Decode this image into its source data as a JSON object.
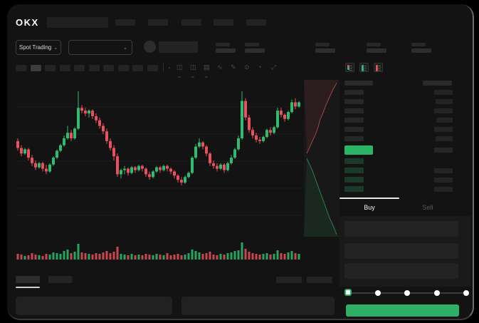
{
  "app": {
    "logo_text": "OKX"
  },
  "header": {
    "market_selector_label": "Spot Trading",
    "nav_items": 5,
    "stat_pairs": 5
  },
  "toolbar": {
    "timeframe_slots": 10,
    "active_timeframe_index": 1,
    "icons": [
      {
        "name": "candle-style-icon",
        "glyph": "◫",
        "chevron": true
      },
      {
        "name": "indicator-icon",
        "glyph": "◫",
        "chevron": true
      },
      {
        "name": "chart-layout-icon",
        "glyph": "▤",
        "chevron": true
      },
      {
        "name": "line-tool-icon",
        "glyph": "∿",
        "chevron": false
      },
      {
        "name": "draw-tool-icon",
        "glyph": "✎",
        "chevron": false
      },
      {
        "name": "snapshot-icon",
        "glyph": "⊙",
        "chevron": false
      },
      {
        "name": "history-icon",
        "glyph": "◔",
        "chevron": false
      },
      {
        "name": "fullscreen-icon",
        "glyph": "⤢",
        "chevron": false
      }
    ]
  },
  "orderbook": {
    "view_icons": [
      "combined-book-icon",
      "bids-only-icon",
      "asks-only-icon"
    ],
    "ask_rows": 6,
    "bid_rows": 4,
    "ask_amount_widths": [
      26,
      24,
      26,
      23,
      26,
      24
    ],
    "colors": {
      "ask_red": "#e8515d",
      "bid_green": "#2ebd70",
      "last_price": "#2bb368",
      "bid_row_bg": "#1b3a2b"
    }
  },
  "trade_panel": {
    "buy_tab": "Buy",
    "sell_tab": "Sell",
    "fields": 3,
    "slider_stops": 5,
    "active_stop_index": 0,
    "submit_color": "#2fae66"
  },
  "chart_data": {
    "type": "candlestick",
    "grid": true,
    "colors": {
      "up": "#2ebd70",
      "down": "#e8515d"
    },
    "candles": [
      [
        64,
        66,
        57,
        59
      ],
      [
        59,
        61,
        53,
        55
      ],
      [
        55,
        59,
        54,
        58
      ],
      [
        58,
        59,
        50,
        52
      ],
      [
        52,
        54,
        46,
        48
      ],
      [
        48,
        50,
        43,
        45
      ],
      [
        45,
        49,
        44,
        48
      ],
      [
        48,
        49,
        42,
        44
      ],
      [
        44,
        47,
        40,
        42
      ],
      [
        42,
        48,
        41,
        47
      ],
      [
        47,
        53,
        46,
        52
      ],
      [
        52,
        58,
        51,
        57
      ],
      [
        57,
        62,
        56,
        61
      ],
      [
        61,
        68,
        60,
        66
      ],
      [
        66,
        75,
        65,
        70
      ],
      [
        70,
        72,
        64,
        66
      ],
      [
        66,
        74,
        65,
        73
      ],
      [
        73,
        100,
        72,
        88
      ],
      [
        88,
        90,
        84,
        86
      ],
      [
        86,
        88,
        82,
        84
      ],
      [
        84,
        87,
        81,
        86
      ],
      [
        86,
        87,
        80,
        82
      ],
      [
        82,
        84,
        77,
        79
      ],
      [
        79,
        81,
        73,
        75
      ],
      [
        75,
        77,
        69,
        71
      ],
      [
        71,
        73,
        62,
        64
      ],
      [
        64,
        66,
        57,
        59
      ],
      [
        59,
        61,
        50,
        53
      ],
      [
        53,
        55,
        38,
        40
      ],
      [
        40,
        44,
        37,
        43
      ],
      [
        43,
        46,
        40,
        44
      ],
      [
        44,
        45,
        39,
        41
      ],
      [
        41,
        46,
        40,
        45
      ],
      [
        45,
        46,
        41,
        43
      ],
      [
        43,
        47,
        42,
        46
      ],
      [
        46,
        47,
        42,
        44
      ],
      [
        44,
        45,
        38,
        40
      ],
      [
        40,
        42,
        36,
        38
      ],
      [
        38,
        43,
        37,
        42
      ],
      [
        42,
        46,
        41,
        45
      ],
      [
        45,
        46,
        41,
        43
      ],
      [
        43,
        47,
        42,
        46
      ],
      [
        46,
        47,
        42,
        44
      ],
      [
        44,
        45,
        40,
        42
      ],
      [
        42,
        43,
        37,
        39
      ],
      [
        39,
        40,
        34,
        36
      ],
      [
        36,
        38,
        32,
        34
      ],
      [
        34,
        39,
        33,
        38
      ],
      [
        38,
        42,
        37,
        41
      ],
      [
        41,
        53,
        40,
        52
      ],
      [
        52,
        62,
        51,
        60
      ],
      [
        60,
        66,
        59,
        63
      ],
      [
        63,
        64,
        58,
        60
      ],
      [
        60,
        61,
        53,
        55
      ],
      [
        55,
        56,
        46,
        48
      ],
      [
        48,
        50,
        44,
        46
      ],
      [
        46,
        48,
        42,
        44
      ],
      [
        44,
        48,
        43,
        47
      ],
      [
        47,
        48,
        41,
        43
      ],
      [
        43,
        49,
        42,
        48
      ],
      [
        48,
        54,
        47,
        52
      ],
      [
        52,
        59,
        51,
        58
      ],
      [
        58,
        68,
        57,
        66
      ],
      [
        66,
        100,
        65,
        93
      ],
      [
        93,
        95,
        79,
        81
      ],
      [
        81,
        83,
        70,
        72
      ],
      [
        72,
        74,
        66,
        68
      ],
      [
        68,
        70,
        63,
        65
      ],
      [
        65,
        67,
        62,
        64
      ],
      [
        64,
        68,
        63,
        67
      ],
      [
        67,
        73,
        66,
        72
      ],
      [
        72,
        74,
        68,
        70
      ],
      [
        70,
        75,
        69,
        74
      ],
      [
        74,
        88,
        73,
        86
      ],
      [
        86,
        88,
        81,
        83
      ],
      [
        83,
        84,
        78,
        80
      ],
      [
        80,
        86,
        79,
        85
      ],
      [
        85,
        94,
        84,
        92
      ],
      [
        92,
        95,
        87,
        89
      ],
      [
        89,
        93,
        88,
        92
      ]
    ],
    "volumes": [
      8,
      7,
      5,
      6,
      9,
      7,
      6,
      5,
      8,
      7,
      10,
      9,
      8,
      12,
      14,
      9,
      11,
      22,
      10,
      9,
      8,
      7,
      9,
      8,
      10,
      12,
      9,
      11,
      18,
      8,
      7,
      6,
      8,
      6,
      7,
      6,
      8,
      7,
      6,
      8,
      7,
      6,
      9,
      6,
      7,
      8,
      6,
      7,
      9,
      14,
      12,
      10,
      8,
      9,
      11,
      7,
      6,
      8,
      7,
      9,
      10,
      12,
      13,
      24,
      15,
      11,
      9,
      8,
      7,
      8,
      9,
      7,
      8,
      13,
      9,
      8,
      10,
      12,
      9,
      8
    ],
    "depth": {
      "asks": [
        [
          0.08,
          0.47
        ],
        [
          0.14,
          0.44
        ],
        [
          0.2,
          0.41
        ],
        [
          0.26,
          0.38
        ],
        [
          0.34,
          0.34
        ],
        [
          0.4,
          0.3
        ],
        [
          0.46,
          0.25
        ],
        [
          0.54,
          0.21
        ],
        [
          0.62,
          0.16
        ],
        [
          0.72,
          0.11
        ],
        [
          0.82,
          0.06
        ],
        [
          0.92,
          0.02
        ]
      ],
      "bids": [
        [
          0.08,
          0.5
        ],
        [
          0.16,
          0.54
        ],
        [
          0.24,
          0.58
        ],
        [
          0.32,
          0.63
        ],
        [
          0.4,
          0.68
        ],
        [
          0.48,
          0.73
        ],
        [
          0.56,
          0.78
        ],
        [
          0.64,
          0.83
        ],
        [
          0.72,
          0.88
        ],
        [
          0.82,
          0.93
        ],
        [
          0.92,
          0.985
        ]
      ]
    }
  }
}
